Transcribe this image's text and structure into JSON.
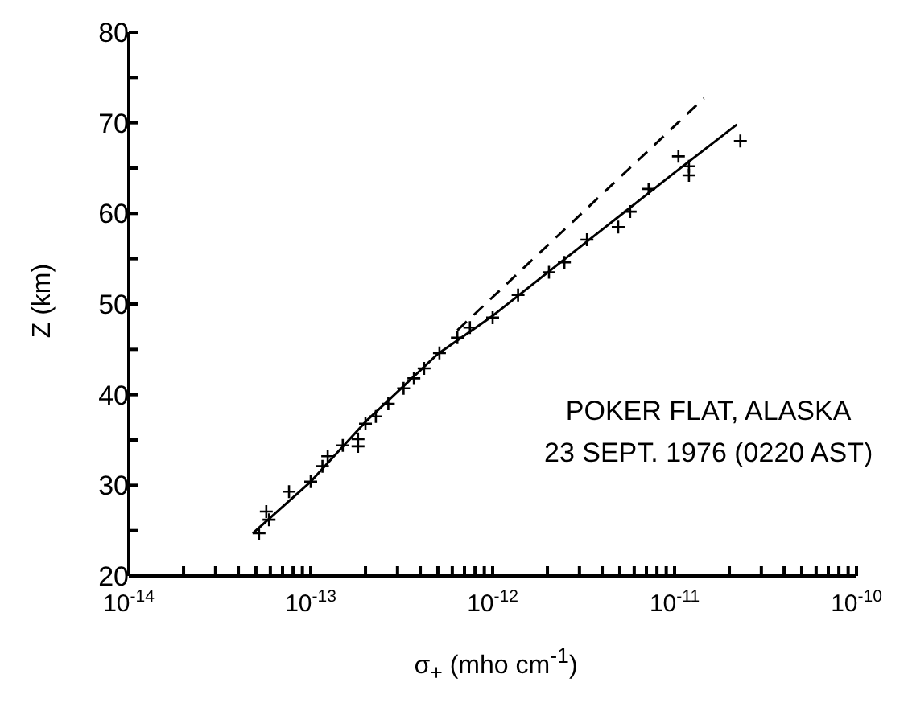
{
  "chart_data": {
    "type": "scatter",
    "xlabel": "σ$_{+}$ (mho cm$^{-1}$)",
    "ylabel": "Z (km)",
    "log": "x",
    "grid": false,
    "legend": false,
    "annotations": [
      "POKER FLAT, ALASKA",
      "23 SEPT. 1976 (0220 AST)"
    ],
    "xlim": [
      1e-14,
      1e-10
    ],
    "xticks": [
      {
        "value": 1e-14,
        "label": "10$^{-14}$"
      },
      {
        "value": 2e-14,
        "label": null
      },
      {
        "value": 3e-14,
        "label": null
      },
      {
        "value": 4e-14,
        "label": null
      },
      {
        "value": 5e-14,
        "label": null
      },
      {
        "value": 6e-14,
        "label": null
      },
      {
        "value": 7e-14,
        "label": null
      },
      {
        "value": 8e-14,
        "label": null
      },
      {
        "value": 9e-14,
        "label": null
      },
      {
        "value": 1e-13,
        "label": "10$^{-13}$"
      },
      {
        "value": 2e-13,
        "label": null
      },
      {
        "value": 3e-13,
        "label": null
      },
      {
        "value": 4e-13,
        "label": null
      },
      {
        "value": 5e-13,
        "label": null
      },
      {
        "value": 6e-13,
        "label": null
      },
      {
        "value": 7e-13,
        "label": null
      },
      {
        "value": 8e-13,
        "label": null
      },
      {
        "value": 9e-13,
        "label": null
      },
      {
        "value": 1e-12,
        "label": "10$^{-12}$"
      },
      {
        "value": 2e-12,
        "label": null
      },
      {
        "value": 3e-12,
        "label": null
      },
      {
        "value": 4e-12,
        "label": null
      },
      {
        "value": 5e-12,
        "label": null
      },
      {
        "value": 6e-12,
        "label": null
      },
      {
        "value": 7e-12,
        "label": null
      },
      {
        "value": 8e-12,
        "label": null
      },
      {
        "value": 9e-12,
        "label": null
      },
      {
        "value": 1e-11,
        "label": "10$^{-11}$"
      },
      {
        "value": 2e-11,
        "label": null
      },
      {
        "value": 3e-11,
        "label": null
      },
      {
        "value": 4e-11,
        "label": null
      },
      {
        "value": 5e-11,
        "label": null
      },
      {
        "value": 6e-11,
        "label": null
      },
      {
        "value": 7e-11,
        "label": null
      },
      {
        "value": 8e-11,
        "label": null
      },
      {
        "value": 9e-11,
        "label": null
      },
      {
        "value": 1e-10,
        "label": "10$^{-10}$"
      }
    ],
    "ylim": [
      20,
      80
    ],
    "yticks": [
      20,
      {
        "value": 25,
        "label": null
      },
      30,
      {
        "value": 35,
        "label": null
      },
      40,
      {
        "value": 45,
        "label": null
      },
      50,
      {
        "value": 55,
        "label": null
      },
      60,
      {
        "value": 65,
        "label": null
      },
      70,
      {
        "value": 75,
        "label": null
      },
      80
    ],
    "series": [
      {
        "marker": "cross",
        "color": "#000000",
        "x": [
          5.2e-14,
          5.7e-14,
          5.9e-14,
          7.6e-14,
          1e-13,
          1.16e-13,
          1.24e-13,
          1.5e-13,
          1.82e-13,
          1.82e-13,
          2e-13,
          2.28e-13,
          2.67e-13,
          3.24e-13,
          3.69e-13,
          4.2e-13,
          5.1e-13,
          6.4e-13,
          7.5e-13,
          1e-12,
          1.38e-12,
          2.04e-12,
          2.48e-12,
          3.3e-12,
          4.9e-12,
          5.7e-12,
          7.2e-12,
          1.05e-11,
          1.2e-11,
          1.2e-11,
          2.3e-11
        ],
        "values": [
          24.7,
          27.1,
          26.2,
          29.3,
          30.4,
          32.1,
          33.2,
          34.4,
          35.1,
          34.3,
          36.8,
          37.6,
          39,
          40.7,
          41.8,
          42.9,
          44.6,
          46.3,
          47.4,
          48.5,
          51,
          53.5,
          54.6,
          57.1,
          58.5,
          60.2,
          62.7,
          66.3,
          65.2,
          64.2,
          68
        ]
      },
      {
        "type": "line",
        "marker": "none",
        "line_style": "solid",
        "color": "#000000",
        "x": [
          4.8e-14,
          1e-13,
          2e-13,
          5e-13,
          1e-12,
          1e-11,
          2.2e-11
        ],
        "values": [
          24.7,
          30.4,
          37,
          44.5,
          48.7,
          64.5,
          69.8
        ]
      },
      {
        "type": "line",
        "marker": "none",
        "line_style": "dashed",
        "color": "#000000",
        "x": [
          6.4e-13,
          1.45e-11
        ],
        "values": [
          47.1,
          72.7
        ]
      }
    ]
  }
}
